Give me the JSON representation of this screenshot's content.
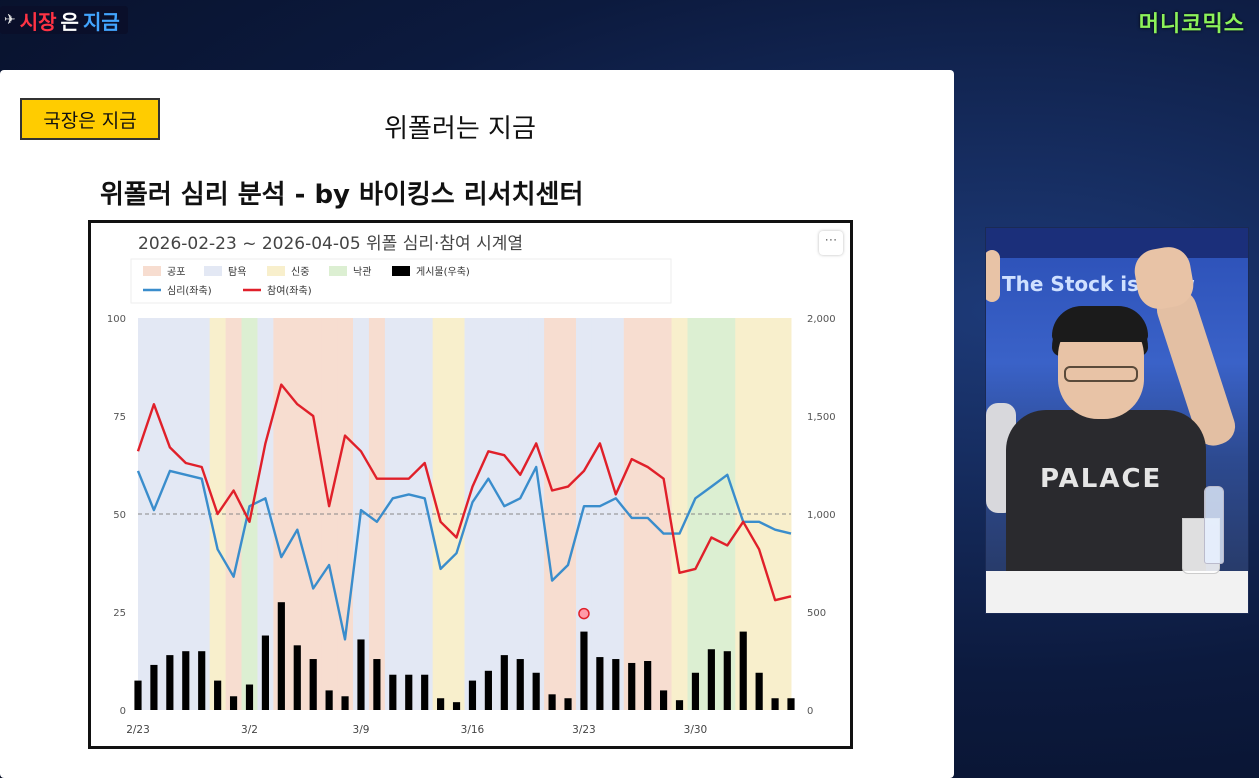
{
  "overlay": {
    "left_brand": {
      "word1": "시장",
      "word2": "은",
      "word3": "지금"
    },
    "right_brand": "머니코믹스"
  },
  "slide": {
    "tag": "국장은 지금",
    "title": "위폴러는 지금",
    "subtitle": "위폴러 심리 분석 - by 바이킹스 리서치센터"
  },
  "video": {
    "banner_text": "The Stock is Now",
    "shirt_text": "PALACE"
  },
  "colors": {
    "fear": "#f7ddd0",
    "explore": "#e3e8f4",
    "caution": "#f8efcc",
    "optimism": "#dcefd2",
    "sentiment_line": "#3a8dcc",
    "participation_line": "#e0202a",
    "posts_bar": "#000000"
  },
  "chart_data": {
    "type": "line",
    "title": "2026-02-23 ~ 2026-04-05 위폴 심리·참여 시계열",
    "legend": {
      "regimes": [
        "공포",
        "탐욕",
        "신중",
        "낙관"
      ],
      "bars": "게시물(우축)",
      "lines": [
        "심리(좌축)",
        "참여(좌축)"
      ],
      "placement": "top-left"
    },
    "x_ticks": [
      "2/23",
      "3/2",
      "3/9",
      "3/16",
      "3/23",
      "3/30"
    ],
    "left_axis": {
      "ylim": [
        0,
        100
      ],
      "ticks": [
        0,
        25,
        50,
        75,
        100
      ]
    },
    "right_axis": {
      "ylim": [
        0,
        2000
      ],
      "ticks": [
        "0",
        "500",
        "1,000",
        "1,500",
        "2,000"
      ]
    },
    "reference_line": 50,
    "series": [
      {
        "name": "심리(좌축)",
        "axis": "left",
        "values": [
          61,
          51,
          61,
          60,
          59,
          41,
          34,
          52,
          54,
          39,
          46,
          31,
          37,
          18,
          51,
          48,
          54,
          55,
          54,
          36,
          40,
          53,
          59,
          52,
          54,
          62,
          33,
          37,
          52,
          52,
          54,
          49,
          49,
          45,
          45,
          54,
          57,
          60,
          48,
          48,
          46,
          45
        ]
      },
      {
        "name": "참여(좌축)",
        "axis": "left",
        "values": [
          66,
          78,
          67,
          63,
          62,
          50,
          56,
          48,
          68,
          83,
          78,
          75,
          52,
          70,
          66,
          59,
          59,
          59,
          63,
          48,
          44,
          57,
          66,
          65,
          60,
          68,
          56,
          57,
          61,
          68,
          55,
          64,
          62,
          59,
          35,
          36,
          44,
          42,
          48,
          41,
          28,
          29
        ]
      },
      {
        "name": "게시물(우축)",
        "axis": "right",
        "type": "bar",
        "values": [
          150,
          230,
          280,
          300,
          300,
          150,
          70,
          130,
          380,
          550,
          330,
          260,
          100,
          70,
          360,
          260,
          180,
          180,
          180,
          60,
          40,
          150,
          200,
          280,
          260,
          190,
          80,
          60,
          400,
          270,
          260,
          240,
          250,
          100,
          50,
          190,
          310,
          300,
          400,
          190,
          60,
          60
        ]
      }
    ],
    "regime_bands": [
      [
        "explore",
        "explore",
        "explore",
        "explore",
        "explore",
        "caution",
        "fear",
        "optimism",
        "explore",
        "fear",
        "fear",
        "fear",
        "fear",
        "fear",
        "explore",
        "fear",
        "explore",
        "explore",
        "explore",
        "caution",
        "caution",
        "explore",
        "explore",
        "explore",
        "explore",
        "explore",
        "fear",
        "fear",
        "explore",
        "explore",
        "explore",
        "fear",
        "fear",
        "fear",
        "caution",
        "optimism",
        "optimism",
        "optimism",
        "caution",
        "caution",
        "caution",
        "caution"
      ]
    ],
    "highlight_point": {
      "series": "게시물(우축)",
      "x_index": 28
    }
  }
}
